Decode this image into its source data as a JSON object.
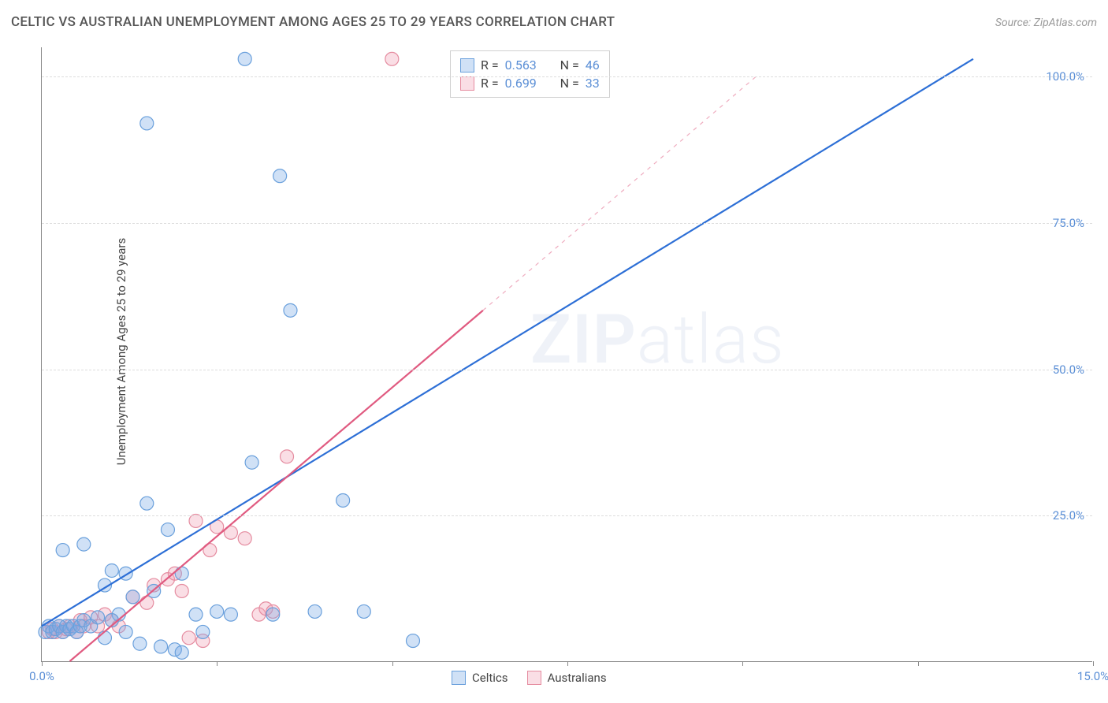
{
  "header": {
    "title": "CELTIC VS AUSTRALIAN UNEMPLOYMENT AMONG AGES 25 TO 29 YEARS CORRELATION CHART",
    "source": "Source: ZipAtlas.com"
  },
  "chart": {
    "type": "scatter",
    "ylabel": "Unemployment Among Ages 25 to 29 years",
    "xlim": [
      0,
      15
    ],
    "ylim": [
      0,
      105
    ],
    "xtick_positions": [
      0,
      2.5,
      5.0,
      7.5,
      10.0,
      12.5,
      15.0
    ],
    "xtick_labels_shown": {
      "0": "0.0%",
      "15": "15.0%"
    },
    "ytick_positions": [
      25,
      50,
      75,
      100
    ],
    "ytick_labels": [
      "25.0%",
      "50.0%",
      "75.0%",
      "100.0%"
    ],
    "grid_color": "#dddddd",
    "axis_color": "#888888",
    "background_color": "#ffffff",
    "tick_label_color": "#5b8fd6",
    "ylabel_color": "#444444",
    "watermark": "ZIPatlas",
    "series": {
      "celtics": {
        "label": "Celtics",
        "color_fill": "rgba(120,170,230,0.35)",
        "color_stroke": "#6aa0dc",
        "line_color": "#2d6fd6",
        "line_width": 2.2,
        "marker_radius": 8.5,
        "R": "0.563",
        "N": "46",
        "trend": {
          "x1": 0,
          "y1": 6,
          "x2": 13.3,
          "y2": 103
        },
        "points": [
          [
            0.05,
            5
          ],
          [
            0.1,
            6
          ],
          [
            0.15,
            5
          ],
          [
            0.2,
            5.5
          ],
          [
            0.25,
            6
          ],
          [
            0.3,
            5
          ],
          [
            0.35,
            6
          ],
          [
            0.4,
            5.5
          ],
          [
            0.45,
            6
          ],
          [
            0.5,
            5
          ],
          [
            0.55,
            6
          ],
          [
            0.6,
            7
          ],
          [
            0.7,
            6
          ],
          [
            0.8,
            7.5
          ],
          [
            0.3,
            19
          ],
          [
            0.6,
            20
          ],
          [
            0.9,
            13
          ],
          [
            1.0,
            15.5
          ],
          [
            1.2,
            15
          ],
          [
            1.3,
            11
          ],
          [
            1.5,
            27
          ],
          [
            1.6,
            12
          ],
          [
            1.8,
            22.5
          ],
          [
            2.0,
            15
          ],
          [
            2.9,
            103
          ],
          [
            1.5,
            92
          ],
          [
            3.4,
            83
          ],
          [
            3.55,
            60
          ],
          [
            3.0,
            34
          ],
          [
            4.3,
            27.5
          ],
          [
            2.2,
            8
          ],
          [
            2.3,
            5
          ],
          [
            2.5,
            8.5
          ],
          [
            2.7,
            8
          ],
          [
            1.9,
            2
          ],
          [
            2.0,
            1.5
          ],
          [
            1.4,
            3
          ],
          [
            1.7,
            2.5
          ],
          [
            3.3,
            8
          ],
          [
            3.9,
            8.5
          ],
          [
            4.6,
            8.5
          ],
          [
            5.3,
            3.5
          ],
          [
            1.1,
            8
          ],
          [
            0.9,
            4
          ],
          [
            1.2,
            5
          ],
          [
            1.0,
            7
          ]
        ]
      },
      "australians": {
        "label": "Australians",
        "color_fill": "rgba(240,160,180,0.35)",
        "color_stroke": "#e58ca0",
        "line_color": "#e05a80",
        "line_width": 2.2,
        "marker_radius": 8.5,
        "R": "0.699",
        "N": "33",
        "trend_solid": {
          "x1": 0.4,
          "y1": 0,
          "x2": 6.3,
          "y2": 60
        },
        "trend_dash": {
          "x1": 6.3,
          "y1": 60,
          "x2": 10.2,
          "y2": 100
        },
        "points": [
          [
            0.1,
            5
          ],
          [
            0.15,
            5.5
          ],
          [
            0.2,
            5
          ],
          [
            0.25,
            6
          ],
          [
            0.3,
            5
          ],
          [
            0.35,
            5.5
          ],
          [
            0.4,
            6
          ],
          [
            0.5,
            5
          ],
          [
            0.55,
            7
          ],
          [
            0.6,
            6
          ],
          [
            0.7,
            7.5
          ],
          [
            0.8,
            6
          ],
          [
            0.9,
            8
          ],
          [
            1.0,
            7
          ],
          [
            1.1,
            6
          ],
          [
            5.0,
            103
          ],
          [
            1.3,
            11
          ],
          [
            1.5,
            10
          ],
          [
            1.6,
            13
          ],
          [
            1.8,
            14
          ],
          [
            1.9,
            15
          ],
          [
            2.0,
            12
          ],
          [
            2.2,
            24
          ],
          [
            2.4,
            19
          ],
          [
            2.5,
            23
          ],
          [
            2.7,
            22
          ],
          [
            2.9,
            21
          ],
          [
            3.1,
            8
          ],
          [
            3.2,
            9
          ],
          [
            3.3,
            8.5
          ],
          [
            3.5,
            35
          ],
          [
            2.1,
            4
          ],
          [
            2.3,
            3.5
          ]
        ]
      }
    },
    "legend_top": {
      "R_label": "R =",
      "N_label": "N ="
    },
    "legend_bottom": {
      "celtics": "Celtics",
      "australians": "Australians"
    }
  }
}
